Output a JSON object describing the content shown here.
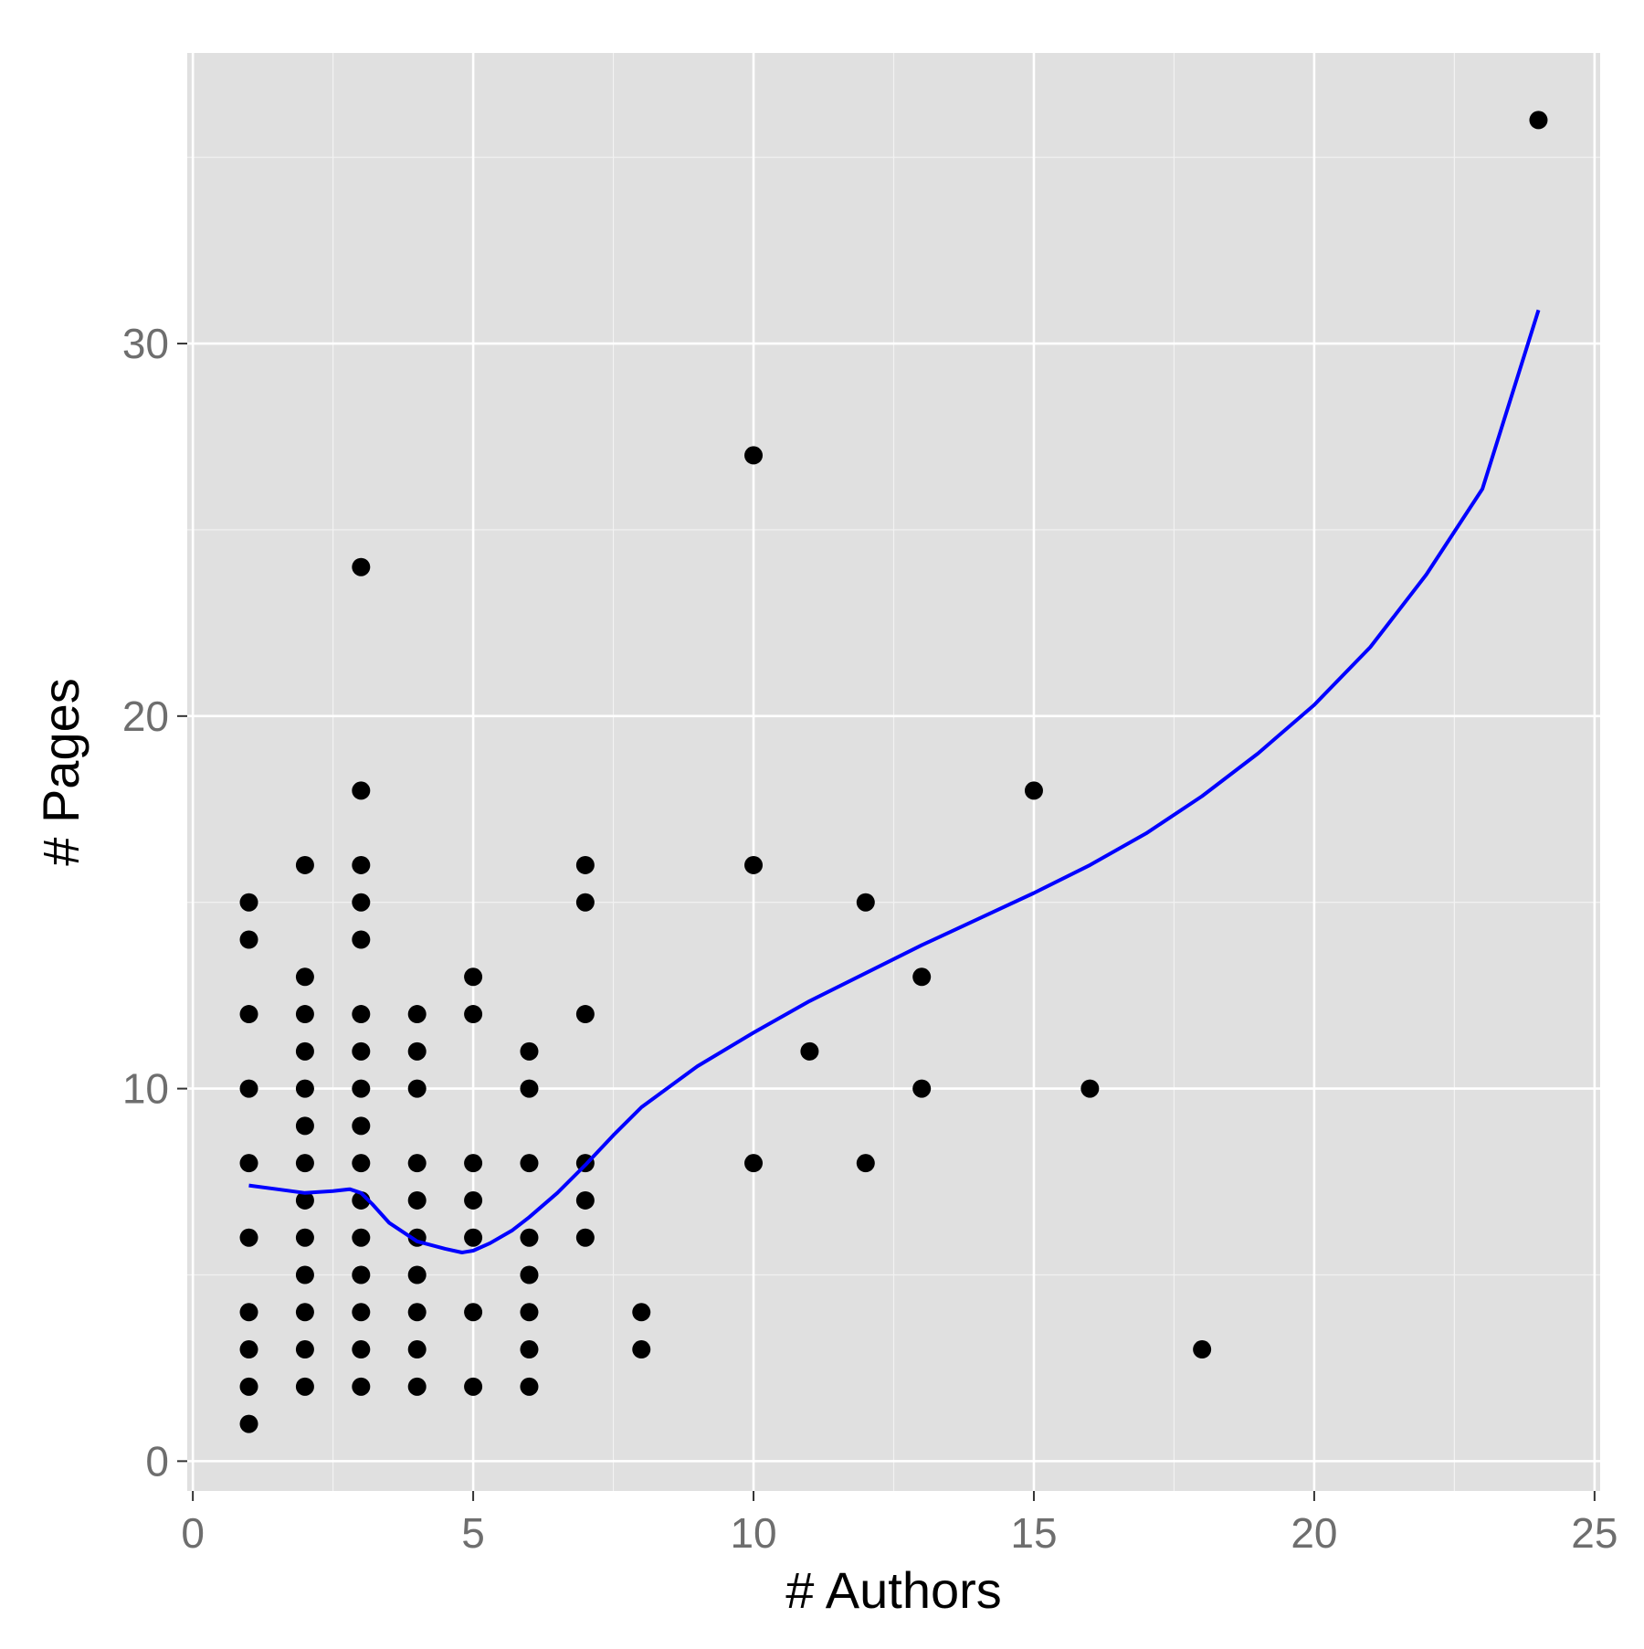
{
  "chart_data": {
    "type": "scatter",
    "xlabel": "# Authors",
    "ylabel": "# Pages",
    "xlim": [
      -0.1,
      25.1
    ],
    "ylim": [
      -0.8,
      37.8
    ],
    "x_ticks": [
      0,
      5,
      10,
      15,
      20,
      25
    ],
    "y_ticks": [
      0,
      10,
      20,
      30
    ],
    "x_minor_ticks": [
      2.5,
      7.5,
      12.5,
      17.5,
      22.5
    ],
    "y_minor_ticks": [
      5,
      15,
      25,
      35
    ],
    "grid": true,
    "colors": {
      "panel_background": "#e0e0e0",
      "grid_major": "#ffffff",
      "grid_minor": "#f2f2f2",
      "points": "#000000",
      "smooth_line": "#0000ff",
      "tick_label": "#6e6e6e",
      "axis_title": "#000000"
    },
    "points": [
      [
        1,
        1
      ],
      [
        1,
        2
      ],
      [
        1,
        3
      ],
      [
        1,
        4
      ],
      [
        1,
        6
      ],
      [
        1,
        8
      ],
      [
        1,
        10
      ],
      [
        1,
        12
      ],
      [
        1,
        14
      ],
      [
        1,
        15
      ],
      [
        2,
        2
      ],
      [
        2,
        3
      ],
      [
        2,
        4
      ],
      [
        2,
        5
      ],
      [
        2,
        6
      ],
      [
        2,
        7
      ],
      [
        2,
        8
      ],
      [
        2,
        9
      ],
      [
        2,
        10
      ],
      [
        2,
        11
      ],
      [
        2,
        12
      ],
      [
        2,
        13
      ],
      [
        2,
        16
      ],
      [
        3,
        2
      ],
      [
        3,
        3
      ],
      [
        3,
        4
      ],
      [
        3,
        5
      ],
      [
        3,
        6
      ],
      [
        3,
        7
      ],
      [
        3,
        8
      ],
      [
        3,
        9
      ],
      [
        3,
        10
      ],
      [
        3,
        11
      ],
      [
        3,
        12
      ],
      [
        3,
        14
      ],
      [
        3,
        15
      ],
      [
        3,
        16
      ],
      [
        3,
        18
      ],
      [
        3,
        24
      ],
      [
        4,
        2
      ],
      [
        4,
        3
      ],
      [
        4,
        4
      ],
      [
        4,
        5
      ],
      [
        4,
        6
      ],
      [
        4,
        7
      ],
      [
        4,
        8
      ],
      [
        4,
        10
      ],
      [
        4,
        11
      ],
      [
        4,
        12
      ],
      [
        5,
        2
      ],
      [
        5,
        4
      ],
      [
        5,
        6
      ],
      [
        5,
        7
      ],
      [
        5,
        8
      ],
      [
        5,
        12
      ],
      [
        5,
        13
      ],
      [
        6,
        2
      ],
      [
        6,
        3
      ],
      [
        6,
        4
      ],
      [
        6,
        5
      ],
      [
        6,
        6
      ],
      [
        6,
        8
      ],
      [
        6,
        10
      ],
      [
        6,
        11
      ],
      [
        7,
        6
      ],
      [
        7,
        7
      ],
      [
        7,
        8
      ],
      [
        7,
        12
      ],
      [
        7,
        15
      ],
      [
        7,
        16
      ],
      [
        8,
        3
      ],
      [
        8,
        4
      ],
      [
        10,
        8
      ],
      [
        10,
        16
      ],
      [
        10,
        27
      ],
      [
        11,
        11
      ],
      [
        12,
        8
      ],
      [
        12,
        15
      ],
      [
        13,
        10
      ],
      [
        13,
        13
      ],
      [
        15,
        18
      ],
      [
        16,
        10
      ],
      [
        18,
        3
      ],
      [
        24,
        36
      ]
    ],
    "smooth_series": {
      "x": [
        1,
        1.5,
        2,
        2.5,
        2.8,
        3,
        3.2,
        3.5,
        4,
        4.5,
        4.8,
        5,
        5.3,
        5.7,
        6,
        6.5,
        7,
        7.5,
        8,
        9,
        10,
        11,
        12,
        13,
        14,
        15,
        16,
        17,
        18,
        19,
        20,
        21,
        22,
        23,
        24
      ],
      "y": [
        7.4,
        7.3,
        7.2,
        7.25,
        7.3,
        7.2,
        6.9,
        6.4,
        5.9,
        5.7,
        5.6,
        5.65,
        5.85,
        6.2,
        6.55,
        7.2,
        7.95,
        8.75,
        9.5,
        10.6,
        11.5,
        12.35,
        13.1,
        13.85,
        14.55,
        15.25,
        16.0,
        16.85,
        17.85,
        19.0,
        20.3,
        21.85,
        23.8,
        26.1,
        30.9
      ]
    }
  }
}
